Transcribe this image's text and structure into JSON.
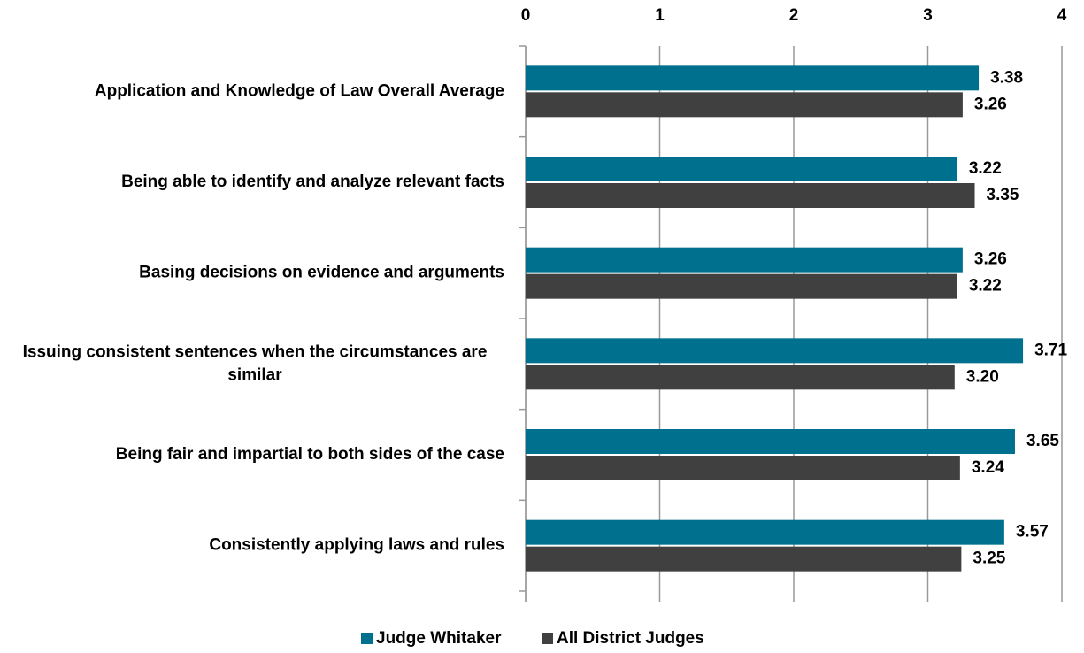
{
  "chart_data": {
    "type": "bar",
    "orientation": "horizontal",
    "categories": [
      "Application and Knowledge of Law Overall Average",
      "Being able to identify and analyze relevant facts",
      "Basing decisions on evidence and arguments",
      "Issuing consistent sentences when the circumstances are similar",
      "Being fair and impartial to both sides of the case",
      "Consistently applying laws and rules"
    ],
    "series": [
      {
        "name": "Judge Whitaker",
        "color": "#00708f",
        "values": [
          3.38,
          3.22,
          3.26,
          3.71,
          3.65,
          3.57
        ],
        "value_labels": [
          "3.38",
          "3.22",
          "3.26",
          "3.71",
          "3.65",
          "3.57"
        ]
      },
      {
        "name": "All District Judges",
        "color": "#404040",
        "values": [
          3.26,
          3.35,
          3.22,
          3.2,
          3.24,
          3.25
        ],
        "value_labels": [
          "3.26",
          "3.35",
          "3.22",
          "3.20",
          "3.24",
          "3.25"
        ]
      }
    ],
    "xlim": [
      0,
      4
    ],
    "xticks": [
      0,
      1,
      2,
      3,
      4
    ],
    "grid": true,
    "legend": "bottom"
  }
}
